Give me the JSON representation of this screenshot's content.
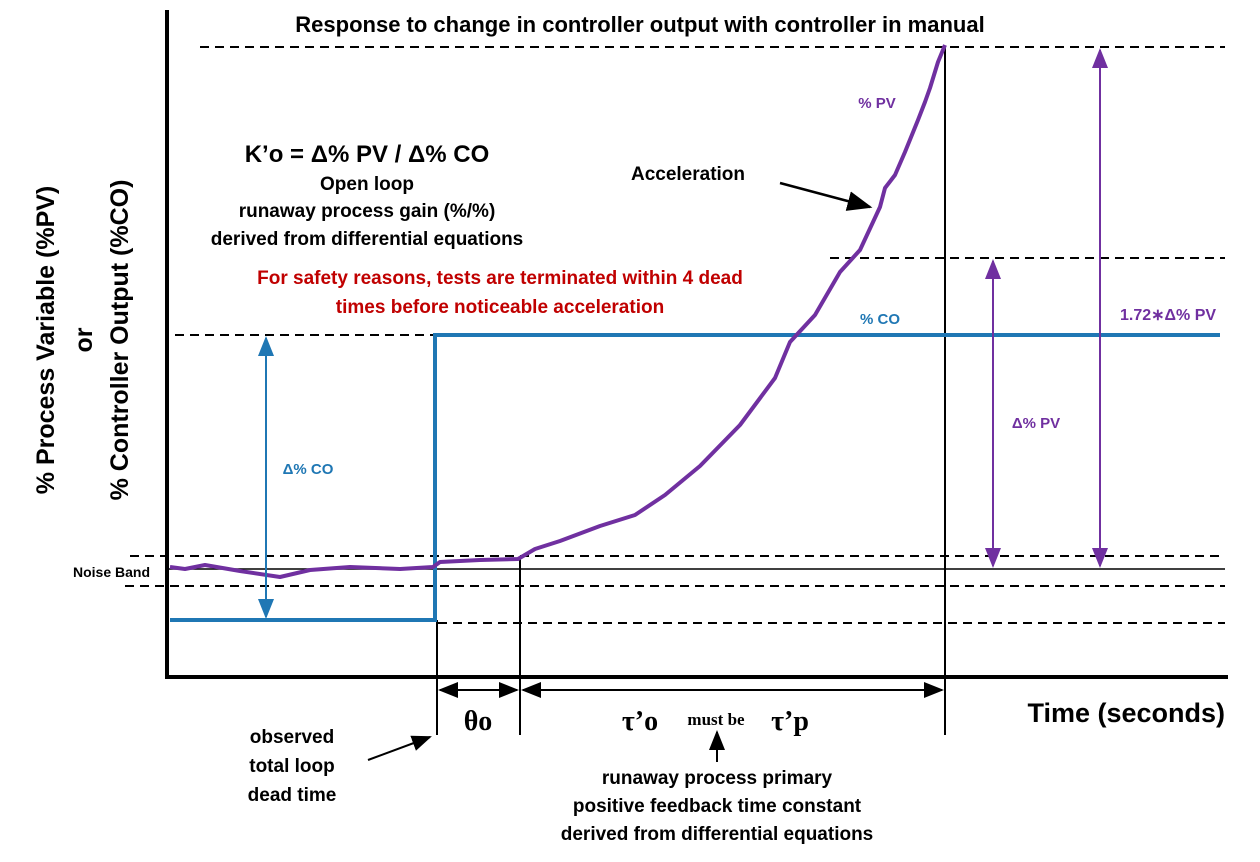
{
  "title": "Response to change in controller output with controller in manual",
  "y_axis_label_line1": "% Process Variable (%PV)",
  "y_axis_label_line2": "or",
  "y_axis_label_line3": "% Controller Output (%CO)",
  "x_axis_label": "Time (seconds)",
  "gain_formula": "K’o = Δ% PV / Δ% CO",
  "gain_desc": [
    "Open loop",
    "runaway process gain (%/%)",
    "derived from differential equations"
  ],
  "safety_note": [
    "For safety reasons, tests are terminated within 4 dead",
    "times before noticeable acceleration"
  ],
  "acceleration_label": "Acceleration",
  "pv_label": "% PV",
  "co_label": "% CO",
  "delta_co_label": "Δ% CO",
  "delta_pv_label": "Δ% PV",
  "scaled_pv_label": "1.72∗Δ% PV",
  "noise_band_label": "Noise Band",
  "dead_time_symbol": "θo",
  "tau_o_symbol": "τ’o",
  "must_be": "must be",
  "tau_p_symbol": "τ’p",
  "dead_time_desc": [
    "observed",
    "total loop",
    "dead time"
  ],
  "tau_desc": [
    "runaway process primary",
    "positive feedback time constant",
    "derived from differential equations"
  ],
  "colors": {
    "pv": "#7030a0",
    "co": "#1f77b4",
    "safety": "#c00000",
    "axis": "#000000"
  }
}
